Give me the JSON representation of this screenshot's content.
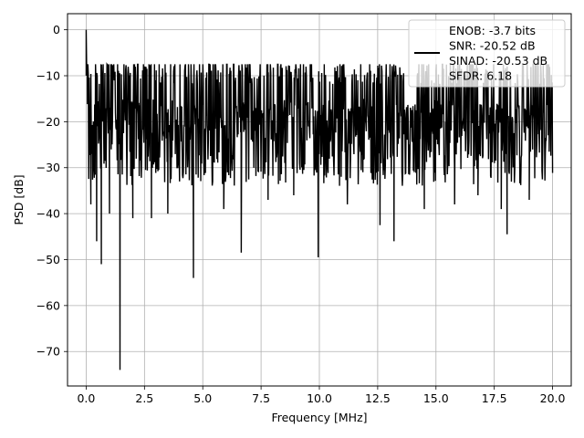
{
  "chart_data": {
    "type": "line",
    "title": "",
    "xlabel": "Frequency [MHz]",
    "ylabel": "PSD [dB]",
    "xlim": [
      -0.8,
      20.8
    ],
    "ylim": [
      -77.5,
      3.5
    ],
    "xticks": [
      0.0,
      2.5,
      5.0,
      7.5,
      10.0,
      12.5,
      15.0,
      17.5,
      20.0
    ],
    "xtick_labels": [
      "0.0",
      "2.5",
      "5.0",
      "7.5",
      "10.0",
      "12.5",
      "15.0",
      "17.5",
      "20.0"
    ],
    "yticks": [
      0,
      -10,
      -20,
      -30,
      -40,
      -50,
      -60,
      -70
    ],
    "ytick_labels": [
      "0",
      "−10",
      "−20",
      "−30",
      "−40",
      "−50",
      "−60",
      "−70"
    ],
    "grid": true,
    "legend": {
      "placement": "top-right",
      "entries": [
        "ENOB: -3.7 bits",
        "SNR: -20.52 dB",
        "SINAD: -20.53 dB",
        "SFDR: 6.18"
      ]
    },
    "series": [
      {
        "color": "#000000",
        "noise_floor_db": -20,
        "noise_band_db": [
          -30,
          -10
        ],
        "x_range": [
          0.0,
          20.0
        ],
        "peaks": [
          {
            "x": 0.0,
            "y": 0.0
          },
          {
            "x": 0.05,
            "y": -9.0
          },
          {
            "x": 0.1,
            "y": -23.0
          }
        ],
        "dips": [
          {
            "x": 0.2,
            "y": -38.0
          },
          {
            "x": 0.45,
            "y": -46.0
          },
          {
            "x": 0.65,
            "y": -51.0
          },
          {
            "x": 1.0,
            "y": -40.0
          },
          {
            "x": 1.45,
            "y": -74.0
          },
          {
            "x": 2.0,
            "y": -41.0
          },
          {
            "x": 2.8,
            "y": -41.0
          },
          {
            "x": 3.5,
            "y": -40.0
          },
          {
            "x": 4.6,
            "y": -54.0
          },
          {
            "x": 5.9,
            "y": -39.0
          },
          {
            "x": 6.65,
            "y": -48.5
          },
          {
            "x": 7.8,
            "y": -37.0
          },
          {
            "x": 8.9,
            "y": -36.0
          },
          {
            "x": 9.95,
            "y": -49.5
          },
          {
            "x": 11.2,
            "y": -38.0
          },
          {
            "x": 12.6,
            "y": -42.5
          },
          {
            "x": 13.2,
            "y": -46.0
          },
          {
            "x": 14.5,
            "y": -39.0
          },
          {
            "x": 15.8,
            "y": -38.0
          },
          {
            "x": 16.8,
            "y": -36.0
          },
          {
            "x": 17.8,
            "y": -39.0
          },
          {
            "x": 18.05,
            "y": -44.5
          },
          {
            "x": 19.0,
            "y": -37.0
          }
        ]
      }
    ]
  }
}
